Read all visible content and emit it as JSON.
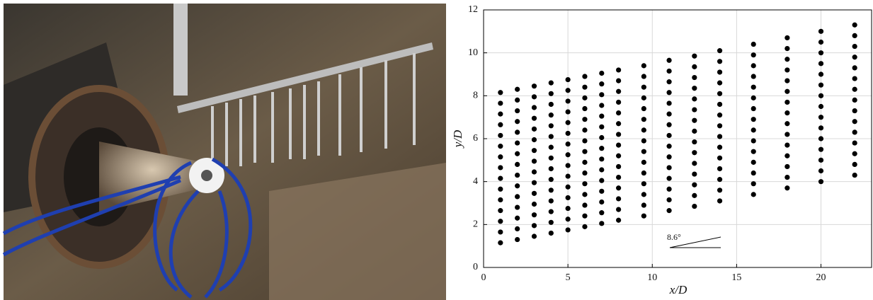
{
  "chart_data": {
    "type": "scatter",
    "x_label": "x/D",
    "y_label": "y/D",
    "annotation": "8.6°",
    "xlim": [
      0,
      23
    ],
    "ylim": [
      0,
      12
    ],
    "xticks": [
      0,
      5,
      10,
      15,
      20
    ],
    "yticks": [
      0,
      2,
      4,
      6,
      8,
      10,
      12
    ],
    "grid": true,
    "color": "#000000",
    "series": [
      {
        "x": 1,
        "values": [
          1.15,
          1.65,
          2.15,
          2.65,
          3.15,
          3.65,
          4.15,
          4.65,
          5.15,
          5.65,
          6.15,
          6.65,
          7.15,
          7.65,
          8.15
        ]
      },
      {
        "x": 2,
        "values": [
          1.3,
          1.8,
          2.3,
          2.8,
          3.3,
          3.8,
          4.3,
          4.8,
          5.3,
          5.8,
          6.3,
          6.8,
          7.3,
          7.8,
          8.3
        ]
      },
      {
        "x": 3,
        "values": [
          1.45,
          1.95,
          2.45,
          2.95,
          3.45,
          3.95,
          4.45,
          4.95,
          5.45,
          5.95,
          6.45,
          6.95,
          7.45,
          7.95,
          8.45
        ]
      },
      {
        "x": 4,
        "values": [
          1.6,
          2.1,
          2.6,
          3.1,
          3.6,
          4.1,
          4.6,
          5.1,
          5.6,
          6.1,
          6.6,
          7.1,
          7.6,
          8.1,
          8.6
        ]
      },
      {
        "x": 5,
        "values": [
          1.75,
          2.25,
          2.75,
          3.25,
          3.75,
          4.25,
          4.75,
          5.25,
          5.75,
          6.25,
          6.75,
          7.25,
          7.75,
          8.25,
          8.75
        ]
      },
      {
        "x": 6,
        "values": [
          1.9,
          2.4,
          2.9,
          3.4,
          3.9,
          4.4,
          4.9,
          5.4,
          5.9,
          6.4,
          6.9,
          7.4,
          7.9,
          8.4,
          8.9
        ]
      },
      {
        "x": 7,
        "values": [
          2.05,
          2.55,
          3.05,
          3.55,
          4.05,
          4.55,
          5.05,
          5.55,
          6.05,
          6.55,
          7.05,
          7.55,
          8.05,
          8.55,
          9.05
        ]
      },
      {
        "x": 8,
        "values": [
          2.2,
          2.7,
          3.2,
          3.7,
          4.2,
          4.7,
          5.2,
          5.7,
          6.2,
          6.7,
          7.2,
          7.7,
          8.2,
          8.7,
          9.2
        ]
      },
      {
        "x": 9.5,
        "values": [
          2.4,
          2.9,
          3.4,
          3.9,
          4.4,
          4.9,
          5.4,
          5.9,
          6.4,
          6.9,
          7.4,
          7.9,
          8.4,
          8.9,
          9.4
        ]
      },
      {
        "x": 11,
        "values": [
          2.65,
          3.15,
          3.65,
          4.15,
          4.65,
          5.15,
          5.65,
          6.15,
          6.65,
          7.15,
          7.65,
          8.15,
          8.65,
          9.15,
          9.65
        ]
      },
      {
        "x": 12.5,
        "values": [
          2.85,
          3.35,
          3.85,
          4.35,
          4.85,
          5.35,
          5.85,
          6.35,
          6.85,
          7.35,
          7.85,
          8.35,
          8.85,
          9.35,
          9.85
        ]
      },
      {
        "x": 14,
        "values": [
          3.1,
          3.6,
          4.1,
          4.6,
          5.1,
          5.6,
          6.1,
          6.6,
          7.1,
          7.6,
          8.1,
          8.6,
          9.1,
          9.6,
          10.1
        ]
      },
      {
        "x": 16,
        "values": [
          3.4,
          3.9,
          4.4,
          4.9,
          5.4,
          5.9,
          6.4,
          6.9,
          7.4,
          7.9,
          8.4,
          8.9,
          9.4,
          9.9,
          10.4
        ]
      },
      {
        "x": 18,
        "values": [
          3.7,
          4.2,
          4.7,
          5.2,
          5.7,
          6.2,
          6.7,
          7.2,
          7.7,
          8.2,
          8.7,
          9.2,
          9.7,
          10.2,
          10.7
        ]
      },
      {
        "x": 20,
        "values": [
          4.0,
          4.5,
          5.0,
          5.5,
          6.0,
          6.5,
          7.0,
          7.5,
          8.0,
          8.5,
          9.0,
          9.5,
          10.0,
          10.5,
          11.0
        ]
      },
      {
        "x": 22,
        "values": [
          4.3,
          4.8,
          5.3,
          5.8,
          6.3,
          6.8,
          7.3,
          7.8,
          8.3,
          8.8,
          9.3,
          9.8,
          10.3,
          10.8,
          11.3
        ]
      }
    ]
  }
}
